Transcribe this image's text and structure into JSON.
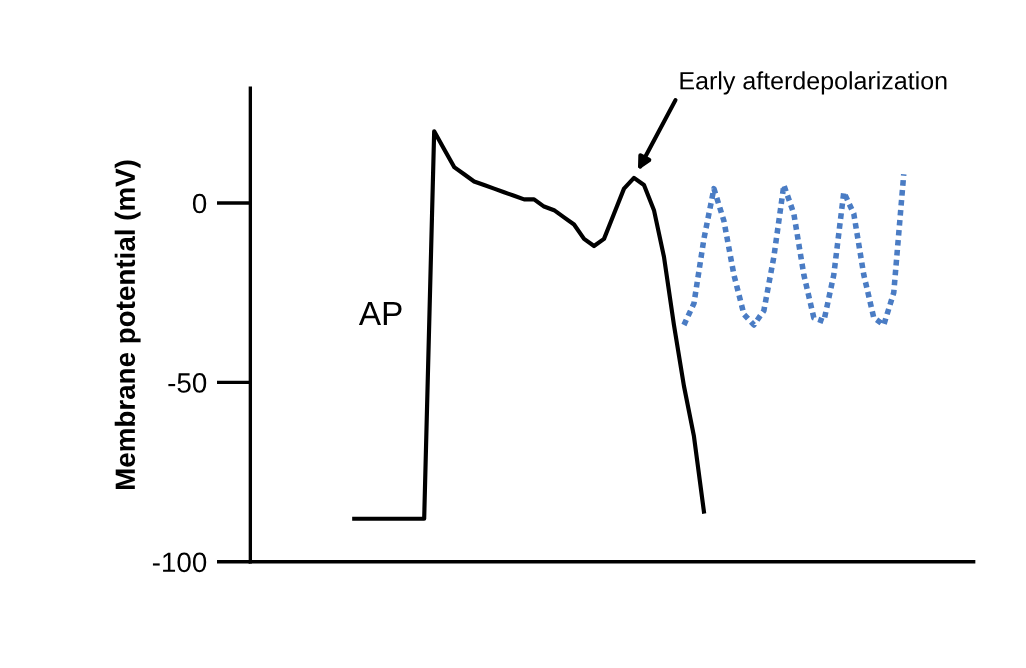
{
  "chart_data": {
    "type": "line",
    "ylabel": "Membrane potential (mV)",
    "categories": [
      null,
      null,
      null,
      null,
      null,
      null,
      null,
      null,
      null,
      null,
      null,
      null,
      null,
      null,
      null,
      null,
      null,
      null,
      null,
      null,
      null,
      null,
      null,
      null,
      null,
      null,
      null,
      null,
      null,
      null,
      null,
      null,
      null,
      null,
      null,
      null,
      null,
      null,
      null,
      null,
      null,
      null,
      null,
      null,
      null,
      null,
      null,
      null,
      null,
      null,
      null,
      null,
      null,
      null,
      null,
      null,
      null,
      null,
      null,
      null,
      null,
      null,
      null,
      null,
      null,
      null,
      null,
      null,
      null,
      null,
      null,
      null,
      null
    ],
    "series": [
      {
        "color": "#000000",
        "line_style": "solid",
        "values": [
          null,
          null,
          null,
          null,
          null,
          null,
          null,
          null,
          null,
          null,
          -88,
          -88,
          -88,
          -88,
          -88,
          -88,
          -88,
          -88,
          20,
          15,
          10,
          8,
          6,
          5,
          4,
          3,
          2,
          1,
          1,
          -1,
          -2,
          -4,
          -6,
          -10,
          -12,
          -10,
          -3,
          4,
          7,
          5,
          -2,
          -15,
          -34,
          -51,
          -65,
          -86,
          null,
          null,
          null,
          null,
          null,
          null,
          null,
          null,
          null,
          null,
          null,
          null,
          null,
          null,
          null,
          null,
          null,
          null,
          null,
          null,
          null,
          null,
          null,
          null,
          null,
          null,
          null
        ]
      },
      {
        "color": "#4a7cc4",
        "line_style": "dotted",
        "values": [
          null,
          null,
          null,
          null,
          null,
          null,
          null,
          null,
          null,
          null,
          null,
          null,
          null,
          null,
          null,
          null,
          null,
          null,
          null,
          null,
          null,
          null,
          null,
          null,
          null,
          null,
          null,
          null,
          null,
          null,
          null,
          null,
          null,
          null,
          null,
          null,
          null,
          null,
          null,
          null,
          null,
          null,
          null,
          -34,
          -28,
          -10,
          4,
          -5,
          -20,
          -31,
          -34,
          -30,
          -15,
          5,
          -3,
          -20,
          -32,
          -33,
          -20,
          3,
          -3,
          -20,
          -32,
          -34,
          -25,
          8,
          null,
          null,
          null,
          null,
          null,
          null,
          null
        ]
      }
    ],
    "ylim": [
      -100,
      32
    ],
    "yticks": [
      0,
      -50,
      -100
    ],
    "grid": false,
    "legend": false,
    "marker": "none",
    "annotations": [
      "AP",
      "Early afterdepolarization"
    ]
  }
}
